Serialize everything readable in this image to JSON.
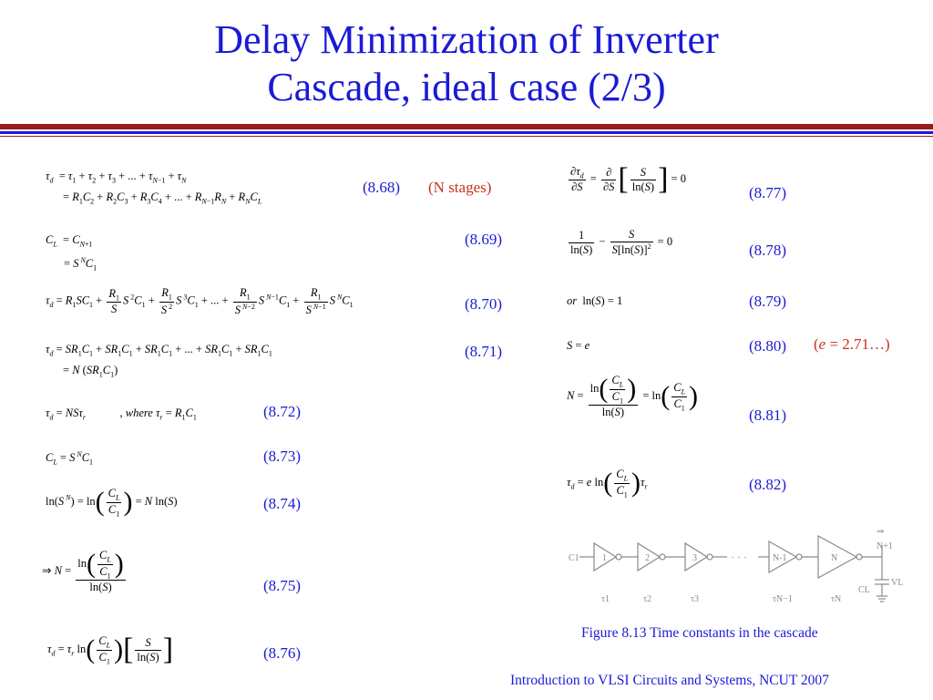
{
  "slide": {
    "title_line1": "Delay Minimization of Inverter",
    "title_line2": "Cascade, ideal case (2/3)",
    "caption": "Figure 8.13 Time constants in the cascade",
    "footer": "Introduction to VLSI Circuits and Systems, NCUT  2007"
  },
  "equation_numbers": {
    "e868": "(8.68)",
    "e869": "(8.69)",
    "e870": "(8.70)",
    "e871": "(8.71)",
    "e872": "(8.72)",
    "e873": "(8.73)",
    "e874": "(8.74)",
    "e875": "(8.75)",
    "e876": "(8.76)",
    "e877": "(8.77)",
    "e878": "(8.78)",
    "e879": "(8.79)",
    "e880": "(8.80)",
    "e881": "(8.81)",
    "e882": "(8.82)"
  },
  "notes": {
    "n_stages": "(N stages)",
    "e_value_prefix": "(",
    "e_value_var": "e",
    "e_value_suffix": " = 2.71…)"
  },
  "figure": {
    "stage_labels": [
      "1",
      "2",
      "3",
      "N-1",
      "N"
    ],
    "tau_labels": [
      "τ1",
      "τ2",
      "τ3",
      "τN−1",
      "τN"
    ],
    "input_label": "C1",
    "load_label": "CL",
    "output_label": "N+1",
    "voltage_label": "VL",
    "ellipsis": "· · ·"
  },
  "colors": {
    "title": "#1a1ad6",
    "rule_red": "#9b1a1a",
    "note": "#c8321e",
    "figure": "#8a8a8a"
  }
}
